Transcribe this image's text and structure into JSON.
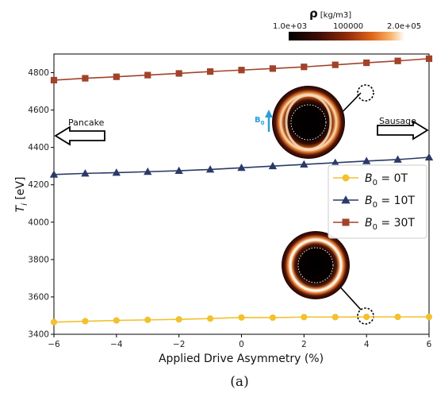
{
  "chart_data": {
    "type": "line",
    "xlabel": "Applied Drive Asymmetry (%)",
    "ylabel": "T_i [eV]",
    "xlim": [
      -6,
      6
    ],
    "ylim": [
      3400,
      4900
    ],
    "xticks": [
      -6,
      -4,
      -2,
      0,
      2,
      4,
      6
    ],
    "yticks": [
      3400,
      3600,
      3800,
      4000,
      4200,
      4400,
      4600,
      4800
    ],
    "x": [
      -6,
      -5,
      -4,
      -3,
      -2,
      -1,
      0,
      1,
      2,
      3,
      4,
      5,
      6
    ],
    "series": [
      {
        "name": "B0 = 0T",
        "label_base": "B",
        "label_sub": "0",
        "label_rest": " = 0T",
        "color": "#f2c12e",
        "marker": "circle",
        "values": [
          3465,
          3470,
          3474,
          3477,
          3480,
          3484,
          3490,
          3489,
          3492,
          3492,
          3493,
          3493,
          3493
        ]
      },
      {
        "name": "B0 = 10T",
        "label_base": "B",
        "label_sub": "0",
        "label_rest": " = 10T",
        "color": "#2b3a67",
        "marker": "triangle",
        "values": [
          4255,
          4261,
          4265,
          4270,
          4275,
          4282,
          4291,
          4300,
          4309,
          4318,
          4327,
          4335,
          4347
        ]
      },
      {
        "name": "B0 = 30T",
        "label_base": "B",
        "label_sub": "0",
        "label_rest": " = 30T",
        "color": "#a1432a",
        "marker": "square",
        "values": [
          4760,
          4770,
          4778,
          4787,
          4796,
          4806,
          4814,
          4822,
          4831,
          4842,
          4853,
          4863,
          4875
        ]
      }
    ],
    "legend_placement": "center-right",
    "grid": false,
    "colorbar": {
      "title_symbol": "ρ",
      "title_unit": "[kg/m3]",
      "tick_labels": [
        "1.0e+03",
        "100000",
        "2.0e+05"
      ]
    },
    "annotations": {
      "left_arrow": "Pancake",
      "right_arrow": "Sausage",
      "field_label_base": "B",
      "field_label_sub": "0"
    },
    "caption": "(a)"
  },
  "colors": {
    "field_arrow": "#2a9fd8",
    "axis": "#000000"
  }
}
